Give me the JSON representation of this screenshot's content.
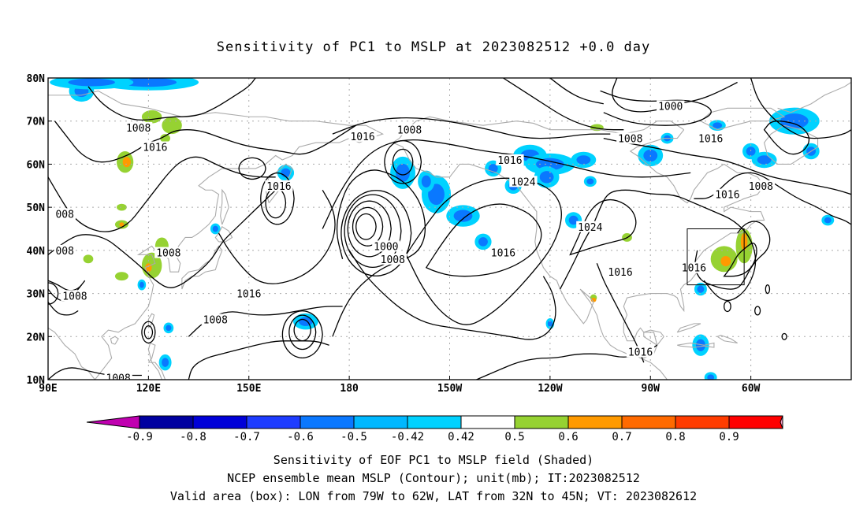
{
  "title": "Sensitivity of PC1 to MSLP at 2023082512 +0.0 day",
  "axes": {
    "lon_ticks": [
      "90E",
      "120E",
      "150E",
      "180",
      "150W",
      "120W",
      "90W",
      "60W"
    ],
    "lat_ticks": [
      "80N",
      "70N",
      "60N",
      "50N",
      "40N",
      "30N",
      "20N",
      "10N"
    ]
  },
  "contour_labels": [
    {
      "text": "1008",
      "lon": 117,
      "lat": 68.5
    },
    {
      "text": "1016",
      "lon": 122,
      "lat": 64.0
    },
    {
      "text": "1016",
      "lon": 159,
      "lat": 55.0
    },
    {
      "text": "1016",
      "lon": 184,
      "lat": 66.5
    },
    {
      "text": "1008",
      "lon": 198,
      "lat": 68.0
    },
    {
      "text": "1016",
      "lon": 228,
      "lat": 61.0
    },
    {
      "text": "1024",
      "lon": 232,
      "lat": 56.0
    },
    {
      "text": "1000",
      "lon": 276,
      "lat": 73.5
    },
    {
      "text": "1008",
      "lon": 264,
      "lat": 66.0
    },
    {
      "text": "1016",
      "lon": 288,
      "lat": 66.0
    },
    {
      "text": "1016",
      "lon": 293,
      "lat": 53.0
    },
    {
      "text": "1008",
      "lon": 303,
      "lat": 55.0
    },
    {
      "text": "1024",
      "lon": 252,
      "lat": 45.5
    },
    {
      "text": "1016",
      "lon": 226,
      "lat": 39.5
    },
    {
      "text": "1000",
      "lon": 191,
      "lat": 41.0
    },
    {
      "text": "1008",
      "lon": 193,
      "lat": 38.0
    },
    {
      "text": "1016",
      "lon": 261,
      "lat": 35.0
    },
    {
      "text": "1016",
      "lon": 283,
      "lat": 36.0
    },
    {
      "text": "1016",
      "lon": 267,
      "lat": 16.5
    },
    {
      "text": "1016",
      "lon": 150,
      "lat": 30.0
    },
    {
      "text": "1008",
      "lon": 140,
      "lat": 24.0
    },
    {
      "text": "1008",
      "lon": 126,
      "lat": 39.5
    },
    {
      "text": "1008",
      "lon": 98,
      "lat": 29.5
    },
    {
      "text": "008",
      "lon": 95,
      "lat": 48.5
    },
    {
      "text": "008",
      "lon": 95,
      "lat": 40.0
    },
    {
      "text": "1008",
      "lon": 111,
      "lat": 10.5
    }
  ],
  "shading": {
    "blue": [
      {
        "lon": 100,
        "lat": 77,
        "rx": 3,
        "ry": 2
      },
      {
        "lon": 120,
        "lat": 79,
        "rx": 12,
        "ry": 1.5
      },
      {
        "lon": 103,
        "lat": 79,
        "rx": 10,
        "ry": 1.3
      },
      {
        "lon": 196,
        "lat": 58,
        "rx": 3,
        "ry": 3
      },
      {
        "lon": 206,
        "lat": 53,
        "rx": 3.5,
        "ry": 3.5
      },
      {
        "lon": 203,
        "lat": 56,
        "rx": 2,
        "ry": 2
      },
      {
        "lon": 214,
        "lat": 48,
        "rx": 4,
        "ry": 2
      },
      {
        "lon": 223,
        "lat": 59,
        "rx": 2,
        "ry": 1.5
      },
      {
        "lon": 234,
        "lat": 62,
        "rx": 4,
        "ry": 2
      },
      {
        "lon": 240,
        "lat": 60,
        "rx": 6,
        "ry": 2
      },
      {
        "lon": 229,
        "lat": 55,
        "rx": 2,
        "ry": 1.5
      },
      {
        "lon": 239,
        "lat": 57,
        "rx": 3,
        "ry": 2
      },
      {
        "lon": 250,
        "lat": 61,
        "rx": 3,
        "ry": 1.5
      },
      {
        "lon": 247,
        "lat": 47,
        "rx": 2,
        "ry": 1.5
      },
      {
        "lon": 220,
        "lat": 42,
        "rx": 2,
        "ry": 1.5
      },
      {
        "lon": 240,
        "lat": 23,
        "rx": 1,
        "ry": 1
      },
      {
        "lon": 270,
        "lat": 62,
        "rx": 3,
        "ry": 2
      },
      {
        "lon": 275,
        "lat": 66,
        "rx": 1.5,
        "ry": 1
      },
      {
        "lon": 290,
        "lat": 69,
        "rx": 2,
        "ry": 1
      },
      {
        "lon": 300,
        "lat": 63,
        "rx": 2,
        "ry": 1.5
      },
      {
        "lon": 304,
        "lat": 61,
        "rx": 3,
        "ry": 1.5
      },
      {
        "lon": 313,
        "lat": 70,
        "rx": 6,
        "ry": 2.5
      },
      {
        "lon": 318,
        "lat": 63,
        "rx": 2,
        "ry": 1.5
      },
      {
        "lon": 323,
        "lat": 47,
        "rx": 1.5,
        "ry": 1
      },
      {
        "lon": 252,
        "lat": 56,
        "rx": 1.5,
        "ry": 1
      },
      {
        "lon": 140,
        "lat": 45,
        "rx": 1.2,
        "ry": 1
      },
      {
        "lon": 167,
        "lat": 23.5,
        "rx": 3,
        "ry": 1.5
      },
      {
        "lon": 285,
        "lat": 18,
        "rx": 2,
        "ry": 2
      },
      {
        "lon": 288,
        "lat": 10.5,
        "rx": 1.5,
        "ry": 1
      },
      {
        "lon": 125,
        "lat": 14,
        "rx": 1.5,
        "ry": 1.5
      },
      {
        "lon": 126,
        "lat": 22,
        "rx": 1.2,
        "ry": 1
      },
      {
        "lon": 118,
        "lat": 32,
        "rx": 1,
        "ry": 1
      },
      {
        "lon": 161,
        "lat": 58,
        "rx": 2,
        "ry": 1.5
      },
      {
        "lon": 285,
        "lat": 31,
        "rx": 1.5,
        "ry": 1.2
      }
    ],
    "green": [
      {
        "lon": 121,
        "lat": 71,
        "rx": 3,
        "ry": 1.5
      },
      {
        "lon": 127,
        "lat": 69,
        "rx": 3,
        "ry": 2
      },
      {
        "lon": 125,
        "lat": 66,
        "rx": 1.5,
        "ry": 1
      },
      {
        "lon": 113,
        "lat": 60.5,
        "rx": 2.5,
        "ry": 2.5
      },
      {
        "lon": 112,
        "lat": 46,
        "rx": 2,
        "ry": 1
      },
      {
        "lon": 112,
        "lat": 50,
        "rx": 1.5,
        "ry": 0.8
      },
      {
        "lon": 121,
        "lat": 36.5,
        "rx": 3,
        "ry": 3
      },
      {
        "lon": 124,
        "lat": 41,
        "rx": 2,
        "ry": 2
      },
      {
        "lon": 112,
        "lat": 34,
        "rx": 2,
        "ry": 1
      },
      {
        "lon": 102,
        "lat": 38,
        "rx": 1.5,
        "ry": 1
      },
      {
        "lon": 254,
        "lat": 68.5,
        "rx": 2,
        "ry": 0.8
      },
      {
        "lon": 292,
        "lat": 38,
        "rx": 4,
        "ry": 3
      },
      {
        "lon": 298,
        "lat": 41,
        "rx": 2.5,
        "ry": 4
      },
      {
        "lon": 263,
        "lat": 43,
        "rx": 1.5,
        "ry": 1
      },
      {
        "lon": 253,
        "lat": 29,
        "rx": 1,
        "ry": 0.8
      }
    ],
    "orange": [
      {
        "lon": 113.5,
        "lat": 60.5,
        "rx": 1.2,
        "ry": 1.2
      },
      {
        "lon": 120,
        "lat": 36,
        "rx": 1,
        "ry": 1
      },
      {
        "lon": 123,
        "lat": 39.5,
        "rx": 0.8,
        "ry": 0.8
      },
      {
        "lon": 112,
        "lat": 46,
        "rx": 0.7,
        "ry": 0.5
      },
      {
        "lon": 292.5,
        "lat": 37.5,
        "rx": 1.5,
        "ry": 1.2
      },
      {
        "lon": 298,
        "lat": 42,
        "rx": 1,
        "ry": 2
      },
      {
        "lon": 253,
        "lat": 28.5,
        "rx": 0.8,
        "ry": 0.5
      }
    ]
  },
  "colorbar": {
    "colors": [
      "#c000b0",
      "#0000a0",
      "#0000d8",
      "#1e3cff",
      "#0a78ff",
      "#00b8ff",
      "#00d2ff",
      "#ffffff",
      "#96d232",
      "#ff9a00",
      "#ff6a00",
      "#ff3c00",
      "#ff0000",
      "#f7a0c8"
    ],
    "labels": [
      "-0.9",
      "-0.8",
      "-0.7",
      "-0.6",
      "-0.5",
      "-0.42",
      "0.42",
      "0.5",
      "0.6",
      "0.7",
      "0.8",
      "0.9"
    ]
  },
  "captions": {
    "line1": "Sensitivity of EOF PC1 to MSLP field (Shaded)",
    "line2": "NCEP ensemble mean MSLP (Contour); unit(mb); IT:2023082512",
    "line3": "Valid area (box): LON from 79W to 62W, LAT from 32N to 45N; VT: 2023082612"
  },
  "valid_box": {
    "lon_min": 281,
    "lon_max": 298,
    "lat_min": 32,
    "lat_max": 45
  }
}
